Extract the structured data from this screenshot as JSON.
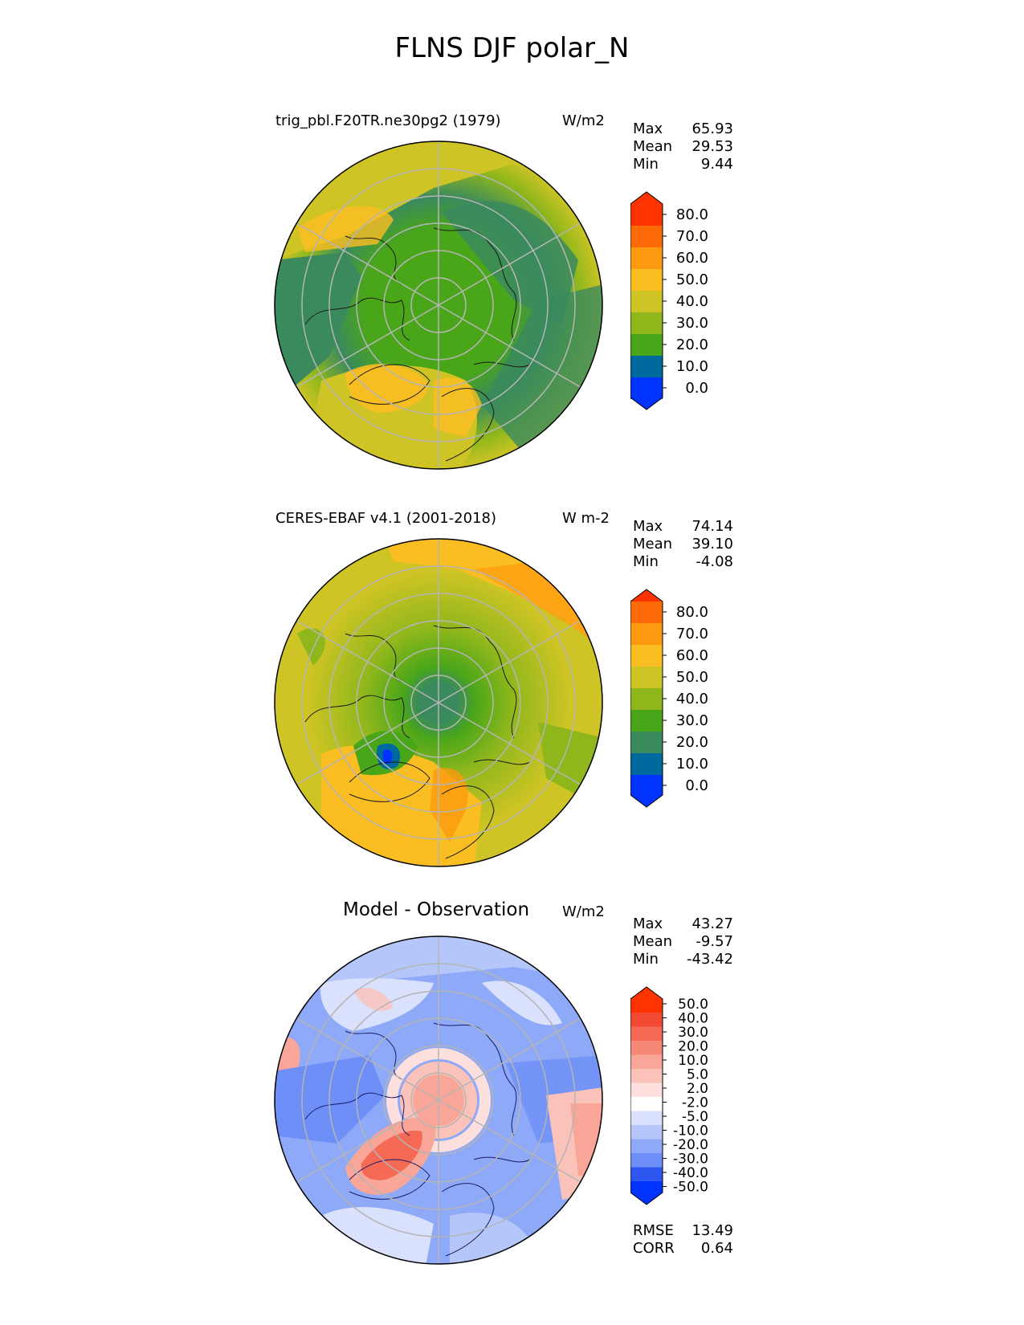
{
  "title": "FLNS DJF polar_N",
  "panels": [
    {
      "title": "trig_pbl.F20TR.ne30pg2 (1979)",
      "units": "W/m2",
      "stats": [
        {
          "label": "Max",
          "value": "65.93"
        },
        {
          "label": "Mean",
          "value": "29.53"
        },
        {
          "label": "Min",
          "value": "9.44"
        }
      ],
      "colorbar_labels": [
        "80.0",
        "70.0",
        "60.0",
        "50.0",
        "40.0",
        "30.0",
        "20.0",
        "10.0",
        "0.0"
      ]
    },
    {
      "title": "CERES-EBAF v4.1 (2001-2018)",
      "units": "W m-2",
      "stats": [
        {
          "label": "Max",
          "value": "74.14"
        },
        {
          "label": "Mean",
          "value": "39.10"
        },
        {
          "label": "Min",
          "value": "-4.08"
        }
      ],
      "colorbar_labels": [
        "80.0",
        "70.0",
        "60.0",
        "50.0",
        "40.0",
        "30.0",
        "20.0",
        "10.0",
        "0.0"
      ]
    },
    {
      "title": "Model - Observation",
      "units": "W/m2",
      "stats": [
        {
          "label": "Max",
          "value": "43.27"
        },
        {
          "label": "Mean",
          "value": "-9.57"
        },
        {
          "label": "Min",
          "value": "-43.42"
        }
      ],
      "colorbar_labels": [
        "50.0",
        "40.0",
        "30.0",
        "20.0",
        "10.0",
        "5.0",
        "2.0",
        "-2.0",
        "-5.0",
        "-10.0",
        "-20.0",
        "-30.0",
        "-40.0",
        "-50.0"
      ]
    }
  ],
  "bottom_stats": [
    {
      "label": "RMSE",
      "value": "13.49"
    },
    {
      "label": "CORR",
      "value": "0.64"
    }
  ],
  "colors": {
    "field_scale": [
      "#0033ff",
      "#006a9e",
      "#3a8a5e",
      "#4aa619",
      "#8fb71c",
      "#cfc425",
      "#fbbe22",
      "#fd9a0f",
      "#fd6a05",
      "#ff3300"
    ],
    "diff_scale": [
      "#0033ff",
      "#2d55f0",
      "#4f74f4",
      "#6e8ff7",
      "#8ea9f7",
      "#b4c6fa",
      "#d9e1fc",
      "#ffffff",
      "#fde0dd",
      "#fbc2b9",
      "#f9a597",
      "#f88876",
      "#f56a55",
      "#f34a33",
      "#ff3300"
    ]
  }
}
